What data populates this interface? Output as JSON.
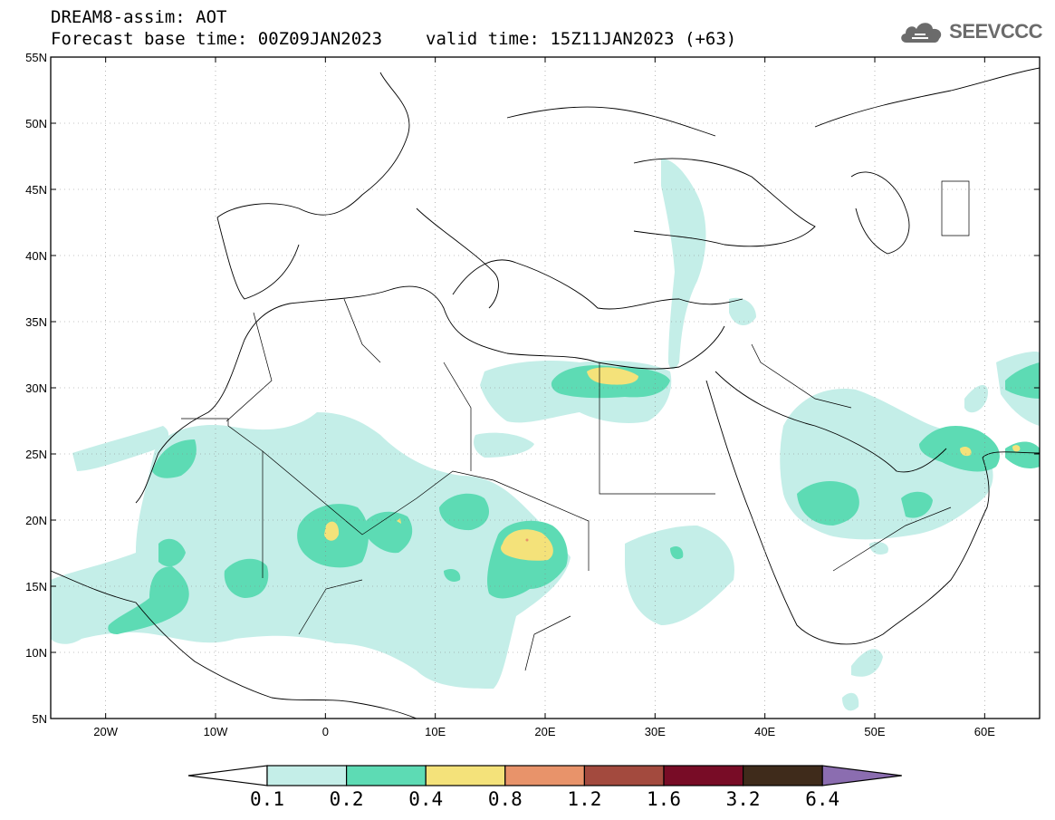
{
  "header": {
    "title": "DREAM8-assim: AOT",
    "base_time": "Forecast base time: 00Z09JAN2023",
    "valid_time": "valid time: 15Z11JAN2023 (+63)"
  },
  "logo": {
    "text": "SEEVCCC",
    "icon": "cloud-icon"
  },
  "map": {
    "lon_range": [
      -25,
      65
    ],
    "lat_range": [
      5,
      55
    ],
    "lat_ticks": [
      {
        "value": 55,
        "label": "55N"
      },
      {
        "value": 50,
        "label": "50N"
      },
      {
        "value": 45,
        "label": "45N"
      },
      {
        "value": 40,
        "label": "40N"
      },
      {
        "value": 35,
        "label": "35N"
      },
      {
        "value": 30,
        "label": "30N"
      },
      {
        "value": 25,
        "label": "25N"
      },
      {
        "value": 20,
        "label": "20N"
      },
      {
        "value": 15,
        "label": "15N"
      },
      {
        "value": 10,
        "label": "10N"
      },
      {
        "value": 5,
        "label": "5N"
      }
    ],
    "lon_ticks": [
      {
        "value": -20,
        "label": "20W"
      },
      {
        "value": -10,
        "label": "10W"
      },
      {
        "value": 0,
        "label": "0"
      },
      {
        "value": 10,
        "label": "10E"
      },
      {
        "value": 20,
        "label": "20E"
      },
      {
        "value": 30,
        "label": "30E"
      },
      {
        "value": 40,
        "label": "40E"
      },
      {
        "value": 50,
        "label": "50E"
      },
      {
        "value": 60,
        "label": "60E"
      }
    ],
    "grid": true
  },
  "colorbar": {
    "levels": [
      "0.1",
      "0.2",
      "0.4",
      "0.8",
      "1.2",
      "1.6",
      "3.2",
      "6.4"
    ],
    "colors": [
      "#c4eee8",
      "#5ddbb4",
      "#f4e27a",
      "#e8936a",
      "#a34a3e",
      "#780c26",
      "#3f2b1b",
      "#8b6db0"
    ],
    "low_end_color": "#ffffff"
  }
}
